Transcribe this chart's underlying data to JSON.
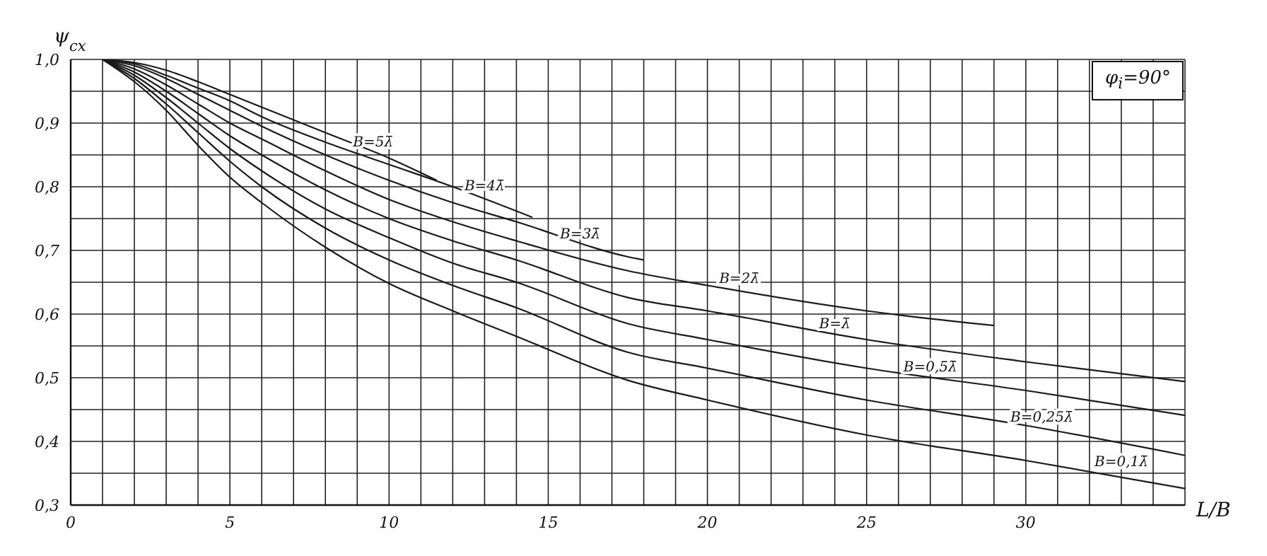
{
  "chart_data": {
    "type": "line",
    "ylabel": "ψ$_{cx}$",
    "xlabel": "L/B",
    "xlim": [
      0,
      35
    ],
    "ylim": [
      0.3,
      1.0
    ],
    "xticks": [
      0,
      {
        "value": 1,
        "label": null
      },
      {
        "value": 2,
        "label": null
      },
      {
        "value": 3,
        "label": null
      },
      {
        "value": 4,
        "label": null
      },
      5,
      {
        "value": 6,
        "label": null
      },
      {
        "value": 7,
        "label": null
      },
      {
        "value": 8,
        "label": null
      },
      {
        "value": 9,
        "label": null
      },
      10,
      {
        "value": 11,
        "label": null
      },
      {
        "value": 12,
        "label": null
      },
      {
        "value": 13,
        "label": null
      },
      {
        "value": 14,
        "label": null
      },
      15,
      {
        "value": 16,
        "label": null
      },
      {
        "value": 17,
        "label": null
      },
      {
        "value": 18,
        "label": null
      },
      {
        "value": 19,
        "label": null
      },
      20,
      {
        "value": 21,
        "label": null
      },
      {
        "value": 22,
        "label": null
      },
      {
        "value": 23,
        "label": null
      },
      {
        "value": 24,
        "label": null
      },
      25,
      {
        "value": 26,
        "label": null
      },
      {
        "value": 27,
        "label": null
      },
      {
        "value": 28,
        "label": null
      },
      {
        "value": 29,
        "label": null
      },
      30,
      {
        "value": 31,
        "label": null
      },
      {
        "value": 32,
        "label": null
      },
      {
        "value": 33,
        "label": null
      },
      {
        "value": 34,
        "label": null
      },
      {
        "value": 35,
        "label": null
      }
    ],
    "yticks": [
      {
        "value": 0.3,
        "label": "0,3"
      },
      {
        "value": 0.35,
        "label": null
      },
      {
        "value": 0.4,
        "label": "0,4"
      },
      {
        "value": 0.45,
        "label": null
      },
      {
        "value": 0.5,
        "label": "0,5"
      },
      {
        "value": 0.55,
        "label": null
      },
      {
        "value": 0.6,
        "label": "0,6"
      },
      {
        "value": 0.65,
        "label": null
      },
      {
        "value": 0.7,
        "label": "0,7"
      },
      {
        "value": 0.75,
        "label": null
      },
      {
        "value": 0.8,
        "label": "0,8"
      },
      {
        "value": 0.85,
        "label": null
      },
      {
        "value": 0.9,
        "label": "0,9"
      },
      {
        "value": 0.95,
        "label": null
      },
      {
        "value": 1.0,
        "label": "1,0"
      }
    ],
    "grid": true,
    "marker": "none",
    "line_style": "solid",
    "series": [
      {
        "color": "#1a1a1a",
        "x": [
          1,
          2,
          3,
          4,
          5,
          6,
          8,
          10,
          11.5
        ],
        "values": [
          1.0,
          0.995,
          0.983,
          0.965,
          0.945,
          0.925,
          0.885,
          0.845,
          0.81
        ]
      },
      {
        "color": "#1a1a1a",
        "x": [
          1,
          2,
          3,
          4,
          5,
          6,
          8,
          10,
          12,
          14.5
        ],
        "values": [
          1.0,
          0.993,
          0.975,
          0.955,
          0.935,
          0.91,
          0.87,
          0.835,
          0.8,
          0.752
        ]
      },
      {
        "color": "#1a1a1a",
        "x": [
          1,
          2,
          3,
          4,
          5,
          6,
          8,
          10,
          12,
          14,
          17.5,
          18
        ],
        "values": [
          1.0,
          0.99,
          0.97,
          0.945,
          0.92,
          0.895,
          0.85,
          0.81,
          0.775,
          0.745,
          0.69,
          0.685
        ]
      },
      {
        "color": "#1a1a1a",
        "x": [
          1,
          2,
          3,
          4,
          5,
          6,
          8,
          10,
          12,
          14,
          17.5,
          20,
          25,
          29
        ],
        "values": [
          1.0,
          0.985,
          0.96,
          0.93,
          0.9,
          0.875,
          0.825,
          0.78,
          0.745,
          0.715,
          0.668,
          0.645,
          0.605,
          0.582
        ]
      },
      {
        "color": "#1a1a1a",
        "x": [
          1,
          2,
          3,
          4,
          5,
          6,
          8,
          10,
          12,
          14,
          17.5,
          20,
          25,
          30,
          35
        ],
        "values": [
          1.0,
          0.98,
          0.95,
          0.915,
          0.88,
          0.85,
          0.795,
          0.75,
          0.715,
          0.685,
          0.626,
          0.605,
          0.56,
          0.525,
          0.494
        ]
      },
      {
        "color": "#1a1a1a",
        "x": [
          1,
          2,
          3,
          4,
          5,
          6,
          8,
          10,
          12,
          14,
          17.5,
          20,
          25,
          30,
          35
        ],
        "values": [
          1.0,
          0.975,
          0.94,
          0.9,
          0.86,
          0.825,
          0.765,
          0.72,
          0.68,
          0.65,
          0.585,
          0.56,
          0.515,
          0.48,
          0.441
        ]
      },
      {
        "color": "#1a1a1a",
        "x": [
          1,
          2,
          3,
          4,
          5,
          6,
          8,
          10,
          12,
          14,
          17.5,
          20,
          25,
          30,
          35
        ],
        "values": [
          1.0,
          0.97,
          0.93,
          0.885,
          0.84,
          0.8,
          0.735,
          0.685,
          0.645,
          0.61,
          0.54,
          0.515,
          0.465,
          0.425,
          0.378
        ]
      },
      {
        "color": "#1a1a1a",
        "x": [
          1,
          2,
          3,
          4,
          5,
          6,
          8,
          10,
          12,
          14,
          17.5,
          20,
          25,
          30,
          35
        ],
        "values": [
          1.0,
          0.965,
          0.92,
          0.865,
          0.815,
          0.775,
          0.705,
          0.648,
          0.605,
          0.565,
          0.496,
          0.465,
          0.41,
          0.37,
          0.326
        ]
      }
    ],
    "annotations": [
      "φ$_{i}$=90°",
      {
        "text": "B=5λ̄",
        "x": 9.5,
        "y": 0.855
      },
      {
        "text": "B=4λ̄",
        "x": 13,
        "y": 0.786
      },
      {
        "text": "B=3λ̄",
        "x": 16,
        "y": 0.71
      },
      {
        "text": "B=2λ̄",
        "x": 21,
        "y": 0.64
      },
      {
        "text": "B=λ̄",
        "x": 24,
        "y": 0.569
      },
      {
        "text": "B=0,5λ̄",
        "x": 27,
        "y": 0.501
      },
      {
        "text": "B=0,25λ̄",
        "x": 30.5,
        "y": 0.422
      },
      {
        "text": "B=0,1λ̄",
        "x": 33,
        "y": 0.352
      }
    ]
  }
}
